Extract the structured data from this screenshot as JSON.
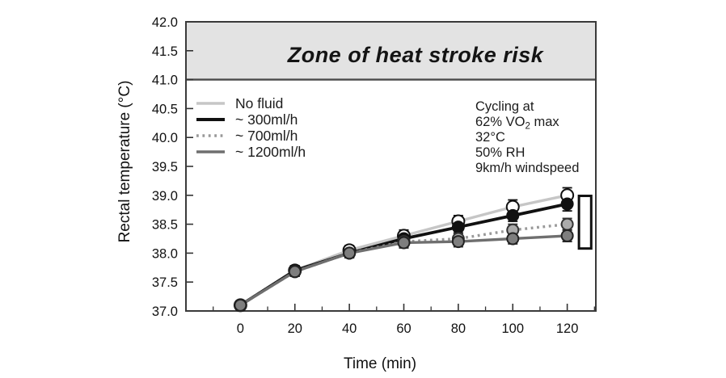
{
  "chart_data": {
    "type": "line",
    "xlabel": "Time (min)",
    "ylabel": "Rectal temperature (°C)",
    "x": [
      0,
      20,
      40,
      60,
      80,
      100,
      120
    ],
    "xlim": [
      -20,
      130.5
    ],
    "ylim": [
      37.0,
      42.0
    ],
    "x_major_ticks": [
      0,
      20,
      40,
      60,
      80,
      100,
      120
    ],
    "x_minor_ticks": [
      -10,
      10,
      30,
      50,
      70,
      90,
      110,
      130
    ],
    "y_major_step": 0.5,
    "grid": false,
    "legend_position": "upper-left",
    "zone": {
      "label": "Zone of heat stroke risk",
      "from": 41.0,
      "to": 42.0,
      "fill": "#e3e3e3",
      "edge": "#4a4a4a"
    },
    "series": [
      {
        "name": "No fluid",
        "line_color": "#c6c6c6",
        "line_style": "solid",
        "marker_fill": "#ffffff",
        "marker_stroke": "#111111",
        "values": [
          37.1,
          37.7,
          38.05,
          38.3,
          38.55,
          38.8,
          39.0
        ],
        "errors": [
          0.07,
          0.08,
          0.08,
          0.1,
          0.1,
          0.12,
          0.13
        ]
      },
      {
        "name": "~ 300ml/h",
        "line_color": "#111111",
        "line_style": "solid",
        "marker_fill": "#111111",
        "marker_stroke": "#111111",
        "values": [
          37.1,
          37.7,
          38.0,
          38.25,
          38.45,
          38.65,
          38.85
        ],
        "errors": [
          0.07,
          0.08,
          0.08,
          0.09,
          0.1,
          0.1,
          0.12
        ]
      },
      {
        "name": "~ 700ml/h",
        "line_color": "#999999",
        "line_style": "dotted",
        "marker_fill": "#ababab",
        "marker_stroke": "#333333",
        "values": [
          37.1,
          37.68,
          38.0,
          38.2,
          38.25,
          38.4,
          38.5
        ],
        "errors": [
          0.07,
          0.08,
          0.08,
          0.09,
          0.09,
          0.1,
          0.1
        ]
      },
      {
        "name": "~ 1200ml/h",
        "line_color": "#6f6f6f",
        "line_style": "solid",
        "marker_fill": "#7e7e7e",
        "marker_stroke": "#222222",
        "values": [
          37.1,
          37.68,
          38.0,
          38.18,
          38.2,
          38.25,
          38.3
        ],
        "errors": [
          0.07,
          0.08,
          0.08,
          0.09,
          0.09,
          0.09,
          0.1
        ]
      }
    ],
    "annotation_lines": [
      [
        {
          "t": "Cycling at"
        }
      ],
      [
        {
          "t": "62% VO"
        },
        {
          "t": "2",
          "sub": true
        },
        {
          "t": " max"
        }
      ],
      [
        {
          "t": "32°C"
        }
      ],
      [
        {
          "t": "50% RH"
        }
      ],
      [
        {
          "t": "9km/h windspeed"
        }
      ]
    ],
    "end_bracket": {
      "x_min": 124.3,
      "x_max": 128.8,
      "temp_min": 38.08,
      "temp_max": 38.99
    }
  }
}
